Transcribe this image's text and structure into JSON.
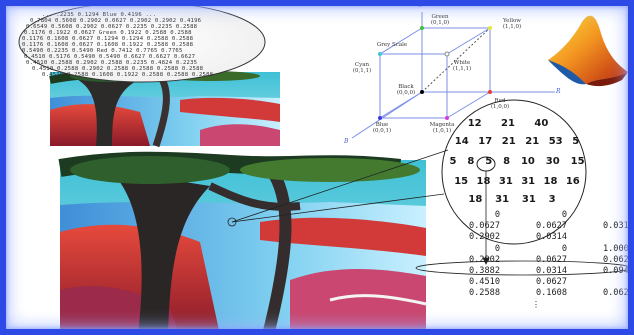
{
  "colors": {
    "frame": "#2d49e6",
    "cube_edge": "#7d8fe6",
    "circle": "#222222",
    "highlight": "#222222"
  },
  "zoom_oval": {
    "lines": [
      "... .2235  0.1294  Blue   0.4196  ...",
      "0.7804 0.5608 0.2902  0.0627  0.2902  0.2902  0.4196",
      "0.6549 0.5608 0.2902  0.0627  0.2235  0.2235  0.2588",
      "0.1176 0.1922 0.0627  Green  0.1922  0.2588  0.2588",
      "0.1176 0.1608 0.0627  0.1294  0.1294  0.2588  0.2588",
      "0.1176 0.1608 0.0627  0.1608  0.1922  0.2588  0.2588",
      "0.5490 0.2235 0.5490  Red   0.7412  0.7765  0.7765",
      "0.4510 0.5176 0.5490  0.5490  0.6627  0.6627  0.6627",
      "0.4510 0.2588 0.2902  0.2588  0.2235  0.4824  0.2235",
      "0.4510 0.2588 0.2902  0.2588  0.2588  0.2588  0.2588",
      "0.4510 0.2588 0.1608  0.1922  0.2588  0.2588  0.2588",
      "0.2588 0.1608 0.2588  0.2588  0.2588  ..."
    ]
  },
  "rgb_cube": {
    "axes": {
      "g": "G",
      "b": "B",
      "r": "R"
    },
    "labels": {
      "grey_scale": "Grey Scale",
      "green": "Green\n(0,1,0)",
      "yellow": "Yellow\n(1,1,0)",
      "cyan": "Cyan\n(0,1,1)",
      "white": "White\n(1,1,1)",
      "black": "Black\n(0,0,0)",
      "red": "Red\n(1,0,0)",
      "blue": "Blue\n(0,0,1)",
      "magenta": "Magenta\n(1,0,1)"
    }
  },
  "magnified_grid": {
    "rows": [
      [
        "",
        "12",
        "21",
        "40",
        ""
      ],
      [
        "14",
        "17",
        "21",
        "21",
        "53",
        "5"
      ],
      [
        "5",
        "8",
        "5",
        "8",
        "10",
        "30",
        "15"
      ],
      [
        "15",
        "18",
        "31",
        "31",
        "18",
        "16"
      ],
      [
        "",
        "18",
        "31",
        "31",
        "3"
      ]
    ]
  },
  "pixel_table": {
    "rows": [
      [
        "0",
        "0",
        "0"
      ],
      [
        "0.0627",
        "0.0627",
        "0.0314"
      ],
      [
        "0.2902",
        "0.0314",
        "0"
      ],
      [
        "0",
        "0",
        "1.0000"
      ],
      [
        "0.2902",
        "0.0627",
        "0.0627"
      ],
      [
        "0.3882",
        "0.0314",
        "0.0941"
      ],
      [
        "0.4510",
        "0.0627",
        "0"
      ],
      [
        "0.2588",
        "0.1608",
        "0.0627"
      ]
    ],
    "ellipsis": "⋮"
  }
}
